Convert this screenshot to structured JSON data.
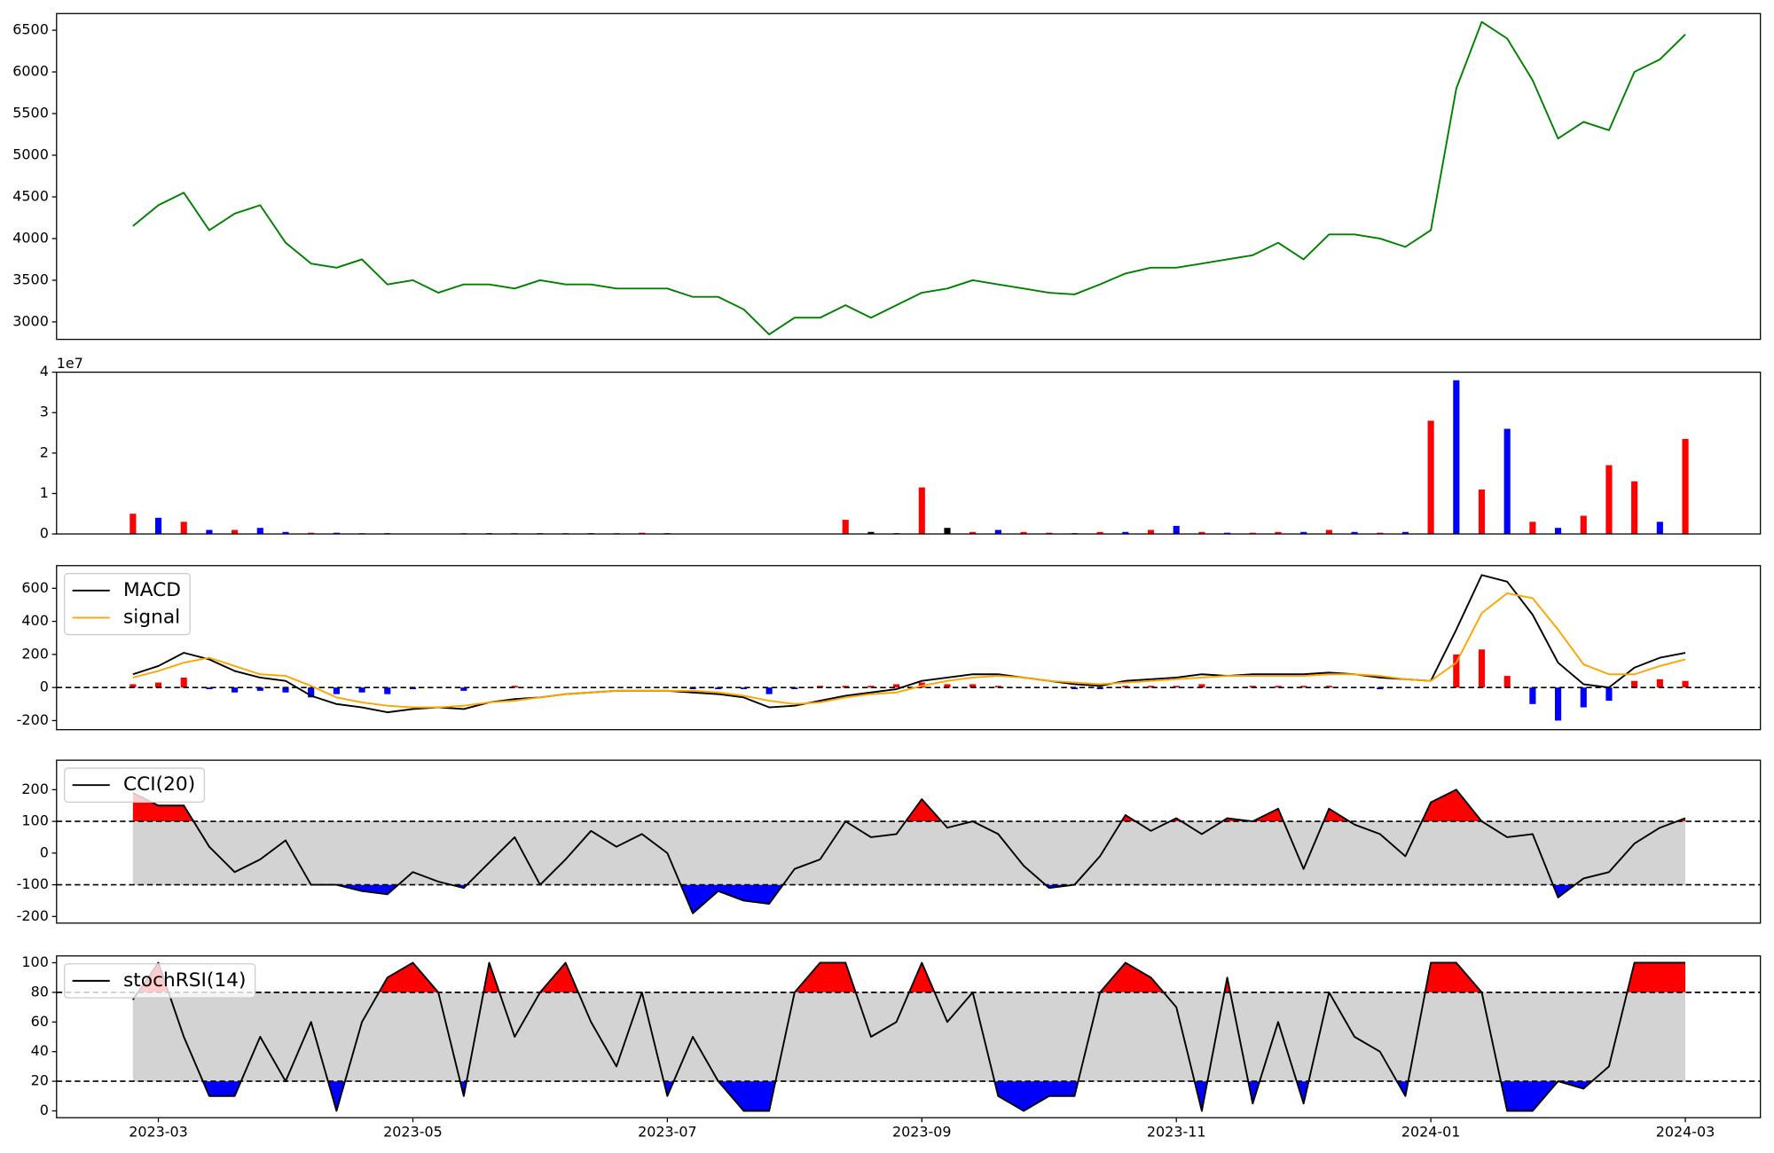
{
  "chart_data": [
    {
      "type": "line",
      "x": [
        1.8,
        2.0,
        2.2,
        2.4,
        2.6,
        2.8,
        3.0,
        3.2,
        3.4,
        3.6,
        3.8,
        4.0,
        4.2,
        4.4,
        4.6,
        4.8,
        5.0,
        5.2,
        5.4,
        5.6,
        5.8,
        6.0,
        6.2,
        6.4,
        6.6,
        6.8,
        7.0,
        7.2,
        7.4,
        7.6,
        7.8,
        8.0,
        8.2,
        8.4,
        8.6,
        8.8,
        9.0,
        9.2,
        9.4,
        9.6,
        9.8,
        10.0,
        10.2,
        10.4,
        10.6,
        10.8,
        11.0,
        11.2,
        11.4,
        11.6,
        11.8,
        12.0,
        12.2,
        12.4,
        12.6,
        12.8,
        13.0,
        13.2,
        13.4,
        13.6,
        13.8,
        14.0
      ],
      "series": [
        {
          "color": "#008000",
          "values": [
            4150,
            4400,
            4550,
            4100,
            4300,
            4400,
            3950,
            3700,
            3650,
            3750,
            3450,
            3500,
            3350,
            3450,
            3450,
            3400,
            3500,
            3450,
            3450,
            3400,
            3400,
            3400,
            3300,
            3300,
            3150,
            2850,
            3050,
            3050,
            3200,
            3050,
            3200,
            3350,
            3400,
            3500,
            3450,
            3400,
            3350,
            3330,
            3450,
            3580,
            3650,
            3650,
            3700,
            3750,
            3800,
            3950,
            3750,
            4050,
            4050,
            4000,
            3900,
            4100,
            5800,
            6600,
            6400,
            5900,
            5200,
            5400,
            5300,
            6000,
            6150,
            6450
          ]
        }
      ],
      "xlim": [
        1.2,
        14.59
      ],
      "ylim": [
        2790,
        6700
      ],
      "yticks": [
        3000,
        3500,
        4000,
        4500,
        5000,
        5500,
        6000,
        6500
      ]
    },
    {
      "type": "bar",
      "offset_label": "1e7",
      "x": [
        1.8,
        2.0,
        2.2,
        2.4,
        2.6,
        2.8,
        3.0,
        3.2,
        3.4,
        3.6,
        3.8,
        4.0,
        4.2,
        4.4,
        4.6,
        4.8,
        5.0,
        5.2,
        5.4,
        5.6,
        5.8,
        6.0,
        6.2,
        6.4,
        6.6,
        6.8,
        7.0,
        7.2,
        7.4,
        7.6,
        7.8,
        8.0,
        8.2,
        8.4,
        8.6,
        8.8,
        9.0,
        9.2,
        9.4,
        9.6,
        9.8,
        10.0,
        10.2,
        10.4,
        10.6,
        10.8,
        11.0,
        11.2,
        11.4,
        11.6,
        11.8,
        12.0,
        12.2,
        12.4,
        12.6,
        12.8,
        13.0,
        13.2,
        13.4,
        13.6,
        13.8,
        14.0
      ],
      "values": [
        0.5,
        0.4,
        0.3,
        0.1,
        0.1,
        0.15,
        0.05,
        0.03,
        0.03,
        0.02,
        0.02,
        0.01,
        0.01,
        0.02,
        0.02,
        0.02,
        0.02,
        0.02,
        0.02,
        0.02,
        0.03,
        0.02,
        0.01,
        0.01,
        0.01,
        0.01,
        0.01,
        0.01,
        0.35,
        0.05,
        0.02,
        1.15,
        0.15,
        0.05,
        0.1,
        0.05,
        0.03,
        0.02,
        0.05,
        0.05,
        0.1,
        0.2,
        0.05,
        0.03,
        0.03,
        0.05,
        0.05,
        0.1,
        0.05,
        0.03,
        0.05,
        2.8,
        3.8,
        1.1,
        2.6,
        0.3,
        0.15,
        0.45,
        1.7,
        1.3,
        0.3,
        2.35
      ],
      "colors": [
        "#ff0000",
        "#0000ff",
        "#ff0000",
        "#0000ff",
        "#ff0000",
        "#0000ff",
        "#0000ff",
        "#ff0000",
        "#0000ff",
        "#ff0000",
        "#0000ff",
        "#ff0000",
        "#0000ff",
        "#ff0000",
        "#0000ff",
        "#ff0000",
        "#0000ff",
        "#ff0000",
        "#0000ff",
        "#ff0000",
        "#ff0000",
        "#0000ff",
        "#ff0000",
        "#0000ff",
        "#ff0000",
        "#0000ff",
        "#ff0000",
        "#0000ff",
        "#ff0000",
        "#000000",
        "#0000ff",
        "#ff0000",
        "#000000",
        "#ff0000",
        "#0000ff",
        "#ff0000",
        "#ff0000",
        "#0000ff",
        "#ff0000",
        "#0000ff",
        "#ff0000",
        "#0000ff",
        "#ff0000",
        "#0000ff",
        "#ff0000",
        "#ff0000",
        "#0000ff",
        "#ff0000",
        "#0000ff",
        "#ff0000",
        "#0000ff",
        "#ff0000",
        "#0000ff",
        "#ff0000",
        "#0000ff",
        "#ff0000",
        "#0000ff",
        "#ff0000",
        "#ff0000",
        "#ff0000",
        "#0000ff",
        "#ff0000"
      ],
      "xlim": [
        1.2,
        14.59
      ],
      "ylim": [
        0,
        4
      ],
      "yticks": [
        0,
        1,
        2,
        3,
        4
      ]
    },
    {
      "type": "macd",
      "legend": "upper left",
      "zero_line": true,
      "x": [
        1.8,
        2.0,
        2.2,
        2.4,
        2.6,
        2.8,
        3.0,
        3.2,
        3.4,
        3.6,
        3.8,
        4.0,
        4.2,
        4.4,
        4.6,
        4.8,
        5.0,
        5.2,
        5.4,
        5.6,
        5.8,
        6.0,
        6.2,
        6.4,
        6.6,
        6.8,
        7.0,
        7.2,
        7.4,
        7.6,
        7.8,
        8.0,
        8.2,
        8.4,
        8.6,
        8.8,
        9.0,
        9.2,
        9.4,
        9.6,
        9.8,
        10.0,
        10.2,
        10.4,
        10.6,
        10.8,
        11.0,
        11.2,
        11.4,
        11.6,
        11.8,
        12.0,
        12.2,
        12.4,
        12.6,
        12.8,
        13.0,
        13.2,
        13.4,
        13.6,
        13.8,
        14.0
      ],
      "series": [
        {
          "name": "MACD",
          "color": "#000000",
          "values": [
            80,
            130,
            210,
            170,
            100,
            60,
            40,
            -50,
            -100,
            -120,
            -150,
            -130,
            -120,
            -130,
            -90,
            -70,
            -60,
            -40,
            -30,
            -20,
            -20,
            -20,
            -30,
            -40,
            -60,
            -120,
            -110,
            -80,
            -50,
            -30,
            -10,
            40,
            60,
            80,
            80,
            60,
            40,
            20,
            10,
            40,
            50,
            60,
            80,
            70,
            80,
            80,
            80,
            90,
            80,
            60,
            50,
            40,
            350,
            680,
            640,
            440,
            150,
            20,
            0,
            120,
            180,
            210
          ]
        },
        {
          "name": "signal",
          "color": "#ffa500",
          "values": [
            60,
            100,
            150,
            180,
            130,
            80,
            70,
            10,
            -60,
            -90,
            -110,
            -120,
            -120,
            -110,
            -90,
            -80,
            -60,
            -40,
            -30,
            -20,
            -20,
            -20,
            -20,
            -30,
            -50,
            -80,
            -100,
            -90,
            -60,
            -40,
            -30,
            10,
            40,
            60,
            70,
            60,
            40,
            30,
            20,
            30,
            40,
            50,
            60,
            70,
            70,
            70,
            70,
            80,
            80,
            70,
            50,
            40,
            150,
            450,
            570,
            540,
            350,
            140,
            80,
            80,
            130,
            170
          ]
        }
      ],
      "histogram": {
        "up_color": "#ff0000",
        "down_color": "#0000ff",
        "values": [
          20,
          30,
          60,
          -10,
          -30,
          -20,
          -30,
          -60,
          -40,
          -30,
          -40,
          -10,
          0,
          -20,
          0,
          10,
          0,
          0,
          0,
          0,
          0,
          0,
          -10,
          -10,
          -10,
          -40,
          -10,
          10,
          10,
          10,
          20,
          30,
          20,
          20,
          10,
          0,
          0,
          -10,
          -10,
          10,
          10,
          10,
          20,
          0,
          10,
          10,
          10,
          10,
          0,
          -10,
          0,
          0,
          200,
          230,
          70,
          -100,
          -200,
          -120,
          -80,
          40,
          50,
          40
        ]
      },
      "xlim": [
        1.2,
        14.59
      ],
      "ylim": [
        -255,
        737
      ],
      "yticks": [
        -200,
        0,
        200,
        400,
        600
      ]
    },
    {
      "type": "band",
      "legend": "upper left",
      "thresholds": [
        -100,
        100
      ],
      "band_color": "#d3d3d3",
      "upper_color": "#ff0000",
      "lower_color": "#0000ff",
      "x": [
        1.8,
        2.0,
        2.2,
        2.4,
        2.6,
        2.8,
        3.0,
        3.2,
        3.4,
        3.6,
        3.8,
        4.0,
        4.2,
        4.4,
        4.6,
        4.8,
        5.0,
        5.2,
        5.4,
        5.6,
        5.8,
        6.0,
        6.2,
        6.4,
        6.6,
        6.8,
        7.0,
        7.2,
        7.4,
        7.6,
        7.8,
        8.0,
        8.2,
        8.4,
        8.6,
        8.8,
        9.0,
        9.2,
        9.4,
        9.6,
        9.8,
        10.0,
        10.2,
        10.4,
        10.6,
        10.8,
        11.0,
        11.2,
        11.4,
        11.6,
        11.8,
        12.0,
        12.2,
        12.4,
        12.6,
        12.8,
        13.0,
        13.2,
        13.4,
        13.6,
        13.8,
        14.0
      ],
      "series": [
        {
          "name": "CCI(20)",
          "color": "#000000",
          "values": [
            190,
            150,
            150,
            20,
            -60,
            -20,
            40,
            -100,
            -100,
            -120,
            -130,
            -60,
            -90,
            -110,
            -30,
            50,
            -100,
            -20,
            70,
            20,
            60,
            0,
            -190,
            -120,
            -150,
            -160,
            -50,
            -20,
            100,
            50,
            60,
            170,
            80,
            100,
            60,
            -40,
            -110,
            -100,
            -10,
            120,
            70,
            110,
            60,
            110,
            100,
            140,
            -50,
            140,
            90,
            60,
            -10,
            160,
            200,
            100,
            50,
            60,
            -140,
            -80,
            -60,
            30,
            80,
            110
          ]
        }
      ],
      "xlim": [
        1.2,
        14.59
      ],
      "ylim": [
        -221,
        293
      ],
      "yticks": [
        -200,
        -100,
        0,
        100,
        200
      ]
    },
    {
      "type": "band",
      "legend": "upper left",
      "thresholds": [
        20,
        80
      ],
      "band_color": "#d3d3d3",
      "upper_color": "#ff0000",
      "lower_color": "#0000ff",
      "x": [
        1.8,
        2.0,
        2.2,
        2.4,
        2.6,
        2.8,
        3.0,
        3.2,
        3.4,
        3.6,
        3.8,
        4.0,
        4.2,
        4.4,
        4.6,
        4.8,
        5.0,
        5.2,
        5.4,
        5.6,
        5.8,
        6.0,
        6.2,
        6.4,
        6.6,
        6.8,
        7.0,
        7.2,
        7.4,
        7.6,
        7.8,
        8.0,
        8.2,
        8.4,
        8.6,
        8.8,
        9.0,
        9.2,
        9.4,
        9.6,
        9.8,
        10.0,
        10.2,
        10.4,
        10.6,
        10.8,
        11.0,
        11.2,
        11.4,
        11.6,
        11.8,
        12.0,
        12.2,
        12.4,
        12.6,
        12.8,
        13.0,
        13.2,
        13.4,
        13.6,
        13.8,
        14.0
      ],
      "series": [
        {
          "name": "stochRSI(14)",
          "color": "#000000",
          "values": [
            75,
            100,
            50,
            10,
            10,
            50,
            20,
            60,
            0,
            60,
            90,
            100,
            80,
            10,
            100,
            50,
            80,
            100,
            60,
            30,
            80,
            10,
            50,
            20,
            0,
            0,
            80,
            100,
            100,
            50,
            60,
            100,
            60,
            80,
            10,
            0,
            10,
            10,
            80,
            100,
            90,
            70,
            0,
            90,
            5,
            60,
            5,
            80,
            50,
            40,
            10,
            100,
            100,
            80,
            0,
            0,
            20,
            15,
            30,
            100,
            100,
            100
          ]
        }
      ],
      "xlim": [
        1.2,
        14.59
      ],
      "ylim": [
        -4.6,
        104.6
      ],
      "yticks": [
        0,
        20,
        40,
        60,
        80,
        100
      ],
      "xticks": [
        {
          "value": 2,
          "label": "2023-03"
        },
        {
          "value": 4,
          "label": "2023-05"
        },
        {
          "value": 6,
          "label": "2023-07"
        },
        {
          "value": 8,
          "label": "2023-09"
        },
        {
          "value": 10,
          "label": "2023-11"
        },
        {
          "value": 12,
          "label": "2024-01"
        },
        {
          "value": 14,
          "label": "2024-03"
        }
      ]
    }
  ]
}
